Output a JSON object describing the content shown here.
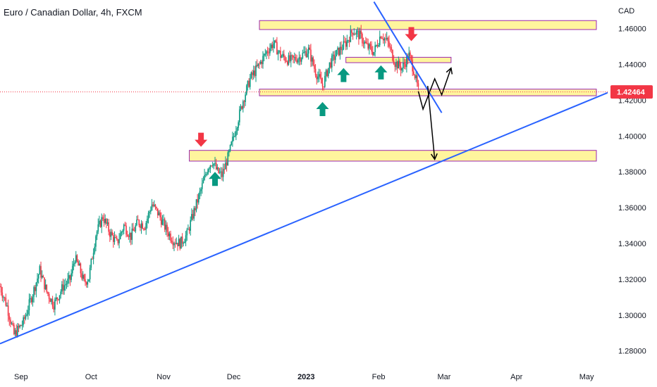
{
  "chart_data": {
    "type": "candlestick",
    "title": "Euro / Canadian Dollar, 4h, FXCM",
    "currency_label": "CAD",
    "last_price": 1.42464,
    "last_price_label": "1.42464",
    "ylim": [
      1.272,
      1.476
    ],
    "xlim": [
      "2022-08-23",
      "2023-05-10"
    ],
    "y_ticks": [
      {
        "value": 1.46,
        "label": "1.46000"
      },
      {
        "value": 1.44,
        "label": "1.44000"
      },
      {
        "value": 1.42,
        "label": "1.42000"
      },
      {
        "value": 1.4,
        "label": "1.40000"
      },
      {
        "value": 1.38,
        "label": "1.38000"
      },
      {
        "value": 1.36,
        "label": "1.36000"
      },
      {
        "value": 1.34,
        "label": "1.34000"
      },
      {
        "value": 1.32,
        "label": "1.32000"
      },
      {
        "value": 1.3,
        "label": "1.30000"
      },
      {
        "value": 1.28,
        "label": "1.28000"
      }
    ],
    "x_ticks": [
      {
        "date": "2022-09-01",
        "label": "Sep",
        "bold": false
      },
      {
        "date": "2022-10-01",
        "label": "Oct",
        "bold": false
      },
      {
        "date": "2022-11-01",
        "label": "Nov",
        "bold": false
      },
      {
        "date": "2022-12-01",
        "label": "Dec",
        "bold": false
      },
      {
        "date": "2023-01-01",
        "label": "2023",
        "bold": true
      },
      {
        "date": "2023-02-01",
        "label": "Feb",
        "bold": false
      },
      {
        "date": "2023-03-01",
        "label": "Mar",
        "bold": false
      },
      {
        "date": "2023-04-01",
        "label": "Apr",
        "bold": false
      },
      {
        "date": "2023-05-01",
        "label": "May",
        "bold": false
      }
    ],
    "price_path": [
      [
        "2022-08-23",
        1.316
      ],
      [
        "2022-08-26",
        1.305
      ],
      [
        "2022-08-29",
        1.289
      ],
      [
        "2022-09-02",
        1.296
      ],
      [
        "2022-09-06",
        1.312
      ],
      [
        "2022-09-09",
        1.325
      ],
      [
        "2022-09-12",
        1.313
      ],
      [
        "2022-09-15",
        1.306
      ],
      [
        "2022-09-19",
        1.316
      ],
      [
        "2022-09-22",
        1.32
      ],
      [
        "2022-09-24",
        1.332
      ],
      [
        "2022-09-26",
        1.326
      ],
      [
        "2022-09-28",
        1.318
      ],
      [
        "2022-09-30",
        1.321
      ],
      [
        "2022-10-03",
        1.345
      ],
      [
        "2022-10-06",
        1.355
      ],
      [
        "2022-10-09",
        1.346
      ],
      [
        "2022-10-12",
        1.34
      ],
      [
        "2022-10-15",
        1.35
      ],
      [
        "2022-10-18",
        1.344
      ],
      [
        "2022-10-21",
        1.352
      ],
      [
        "2022-10-24",
        1.35
      ],
      [
        "2022-10-27",
        1.362
      ],
      [
        "2022-10-30",
        1.356
      ],
      [
        "2022-11-02",
        1.348
      ],
      [
        "2022-11-05",
        1.342
      ],
      [
        "2022-11-08",
        1.34
      ],
      [
        "2022-11-11",
        1.345
      ],
      [
        "2022-11-14",
        1.358
      ],
      [
        "2022-11-17",
        1.37
      ],
      [
        "2022-11-20",
        1.383
      ],
      [
        "2022-11-22",
        1.386
      ],
      [
        "2022-11-24",
        1.38
      ],
      [
        "2022-11-26",
        1.378
      ],
      [
        "2022-11-29",
        1.39
      ],
      [
        "2022-12-02",
        1.405
      ],
      [
        "2022-12-05",
        1.42
      ],
      [
        "2022-12-08",
        1.432
      ],
      [
        "2022-12-12",
        1.44
      ],
      [
        "2022-12-15",
        1.447
      ],
      [
        "2022-12-18",
        1.452
      ],
      [
        "2022-12-21",
        1.445
      ],
      [
        "2022-12-25",
        1.442
      ],
      [
        "2022-12-29",
        1.444
      ],
      [
        "2023-01-02",
        1.448
      ],
      [
        "2023-01-05",
        1.436
      ],
      [
        "2023-01-08",
        1.428
      ],
      [
        "2023-01-11",
        1.44
      ],
      [
        "2023-01-14",
        1.446
      ],
      [
        "2023-01-18",
        1.452
      ],
      [
        "2023-01-21",
        1.459
      ],
      [
        "2023-01-24",
        1.456
      ],
      [
        "2023-01-27",
        1.45
      ],
      [
        "2023-01-30",
        1.447
      ],
      [
        "2023-02-02",
        1.457
      ],
      [
        "2023-02-05",
        1.452
      ],
      [
        "2023-02-08",
        1.441
      ],
      [
        "2023-02-11",
        1.438
      ],
      [
        "2023-02-14",
        1.445
      ],
      [
        "2023-02-16",
        1.437
      ],
      [
        "2023-02-18",
        1.425
      ]
    ],
    "horizontal_zones": [
      {
        "low": 1.4595,
        "high": 1.4645,
        "start": "2022-12-12",
        "end": "2023-05-10"
      },
      {
        "low": 1.441,
        "high": 1.444,
        "start": "2023-01-18",
        "end": "2023-03-04"
      },
      {
        "low": 1.4225,
        "high": 1.4262,
        "start": "2022-12-12",
        "end": "2023-05-10"
      },
      {
        "low": 1.386,
        "high": 1.392,
        "start": "2022-11-12",
        "end": "2023-05-10"
      }
    ],
    "trendlines": [
      {
        "from": [
          "2022-08-23",
          1.284
        ],
        "to": [
          "2023-05-17",
          1.428
        ]
      },
      {
        "from": [
          "2023-01-30",
          1.475
        ],
        "to": [
          "2023-02-28",
          1.413
        ]
      }
    ],
    "projection_path": [
      [
        "2023-02-18",
        1.425
      ],
      [
        "2023-02-20",
        1.415
      ],
      [
        "2023-02-25",
        1.432
      ],
      [
        "2023-02-28",
        1.423
      ],
      [
        "2023-03-04",
        1.438
      ]
    ],
    "projection_drop": {
      "from": [
        "2023-02-22",
        1.428
      ],
      "to": [
        "2023-02-25",
        1.387
      ]
    },
    "up_arrows": [
      {
        "date": "2022-11-23",
        "price": 1.38
      },
      {
        "date": "2023-01-08",
        "price": 1.419
      },
      {
        "date": "2023-01-17",
        "price": 1.438
      },
      {
        "date": "2023-02-02",
        "price": 1.4395
      }
    ],
    "down_arrows": [
      {
        "date": "2022-11-17",
        "price": 1.394
      },
      {
        "date": "2023-02-15",
        "price": 1.453
      }
    ],
    "colors": {
      "up_candle": "#089981",
      "down_candle": "#f23645",
      "trendline": "#2962ff",
      "zone_fill": "#fff59d",
      "zone_border": "#9c27b0",
      "projection": "#000000",
      "price_tag": "#f23645",
      "up_arrow": "#089981",
      "down_arrow": "#f23645"
    }
  }
}
